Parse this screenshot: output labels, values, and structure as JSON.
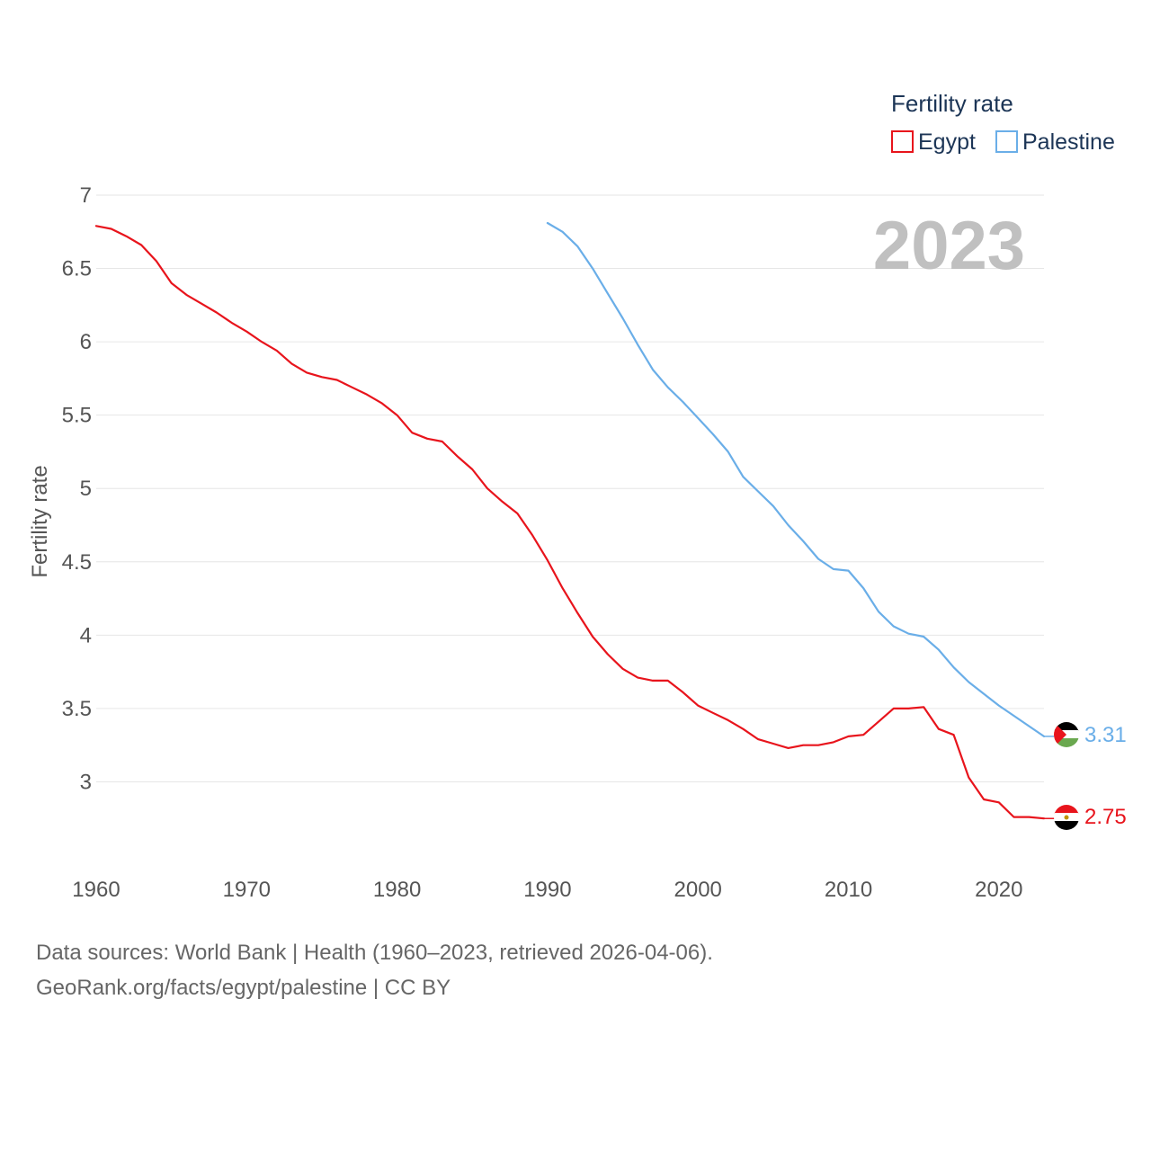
{
  "chart_data": {
    "type": "line",
    "title": "Fertility rate",
    "ylabel": "Fertility rate",
    "xlabel": "",
    "year_overlay": "2023",
    "ylim": [
      2.5,
      7
    ],
    "xlim": [
      1960,
      2023
    ],
    "y_ticks": [
      3,
      3.5,
      4,
      4.5,
      5,
      5.5,
      6,
      6.5,
      7
    ],
    "y_tick_labels": [
      "3",
      "3.5",
      "4",
      "4.5",
      "5",
      "5.5",
      "6",
      "6.5",
      "7"
    ],
    "x_ticks": [
      1960,
      1970,
      1980,
      1990,
      2000,
      2010,
      2020
    ],
    "x_tick_labels": [
      "1960",
      "1970",
      "1980",
      "1990",
      "2000",
      "2010",
      "2020"
    ],
    "grid": true,
    "legend_position": "top-right",
    "series": [
      {
        "name": "Egypt",
        "color": "#e8141c",
        "end_label": "2.75",
        "flag": "egypt-flag",
        "x": [
          1960,
          1961,
          1962,
          1963,
          1964,
          1965,
          1966,
          1967,
          1968,
          1969,
          1970,
          1971,
          1972,
          1973,
          1974,
          1975,
          1976,
          1977,
          1978,
          1979,
          1980,
          1981,
          1982,
          1983,
          1984,
          1985,
          1986,
          1987,
          1988,
          1989,
          1990,
          1991,
          1992,
          1993,
          1994,
          1995,
          1996,
          1997,
          1998,
          1999,
          2000,
          2001,
          2002,
          2003,
          2004,
          2005,
          2006,
          2007,
          2008,
          2009,
          2010,
          2011,
          2012,
          2013,
          2014,
          2015,
          2016,
          2017,
          2018,
          2019,
          2020,
          2021,
          2022,
          2023
        ],
        "values": [
          6.79,
          6.77,
          6.72,
          6.66,
          6.55,
          6.4,
          6.32,
          6.26,
          6.2,
          6.13,
          6.07,
          6.0,
          5.94,
          5.85,
          5.79,
          5.76,
          5.74,
          5.69,
          5.64,
          5.58,
          5.5,
          5.38,
          5.34,
          5.32,
          5.22,
          5.13,
          5.0,
          4.91,
          4.83,
          4.68,
          4.51,
          4.32,
          4.15,
          3.99,
          3.87,
          3.77,
          3.71,
          3.69,
          3.69,
          3.61,
          3.52,
          3.47,
          3.42,
          3.36,
          3.29,
          3.26,
          3.23,
          3.25,
          3.25,
          3.27,
          3.31,
          3.32,
          3.41,
          3.5,
          3.5,
          3.51,
          3.36,
          3.32,
          3.03,
          2.88,
          2.86,
          2.76,
          2.76,
          2.75
        ]
      },
      {
        "name": "Palestine",
        "color": "#6aaee8",
        "end_label": "3.31",
        "flag": "palestine-flag",
        "x": [
          1990,
          1991,
          1992,
          1993,
          1994,
          1995,
          1996,
          1997,
          1998,
          1999,
          2000,
          2001,
          2002,
          2003,
          2004,
          2005,
          2006,
          2007,
          2008,
          2009,
          2010,
          2011,
          2012,
          2013,
          2014,
          2015,
          2016,
          2017,
          2018,
          2019,
          2020,
          2021,
          2022,
          2023
        ],
        "values": [
          6.81,
          6.75,
          6.65,
          6.5,
          6.33,
          6.16,
          5.98,
          5.81,
          5.69,
          5.59,
          5.48,
          5.37,
          5.25,
          5.08,
          4.98,
          4.88,
          4.75,
          4.64,
          4.52,
          4.45,
          4.44,
          4.32,
          4.16,
          4.06,
          4.01,
          3.99,
          3.9,
          3.78,
          3.68,
          3.6,
          3.52,
          3.45,
          3.38,
          3.31
        ]
      }
    ]
  },
  "footer": {
    "source": "Data sources: World Bank | Health (1960–2023, retrieved 2026-04-06).",
    "link": "GeoRank.org/facts/egypt/palestine | CC BY"
  }
}
